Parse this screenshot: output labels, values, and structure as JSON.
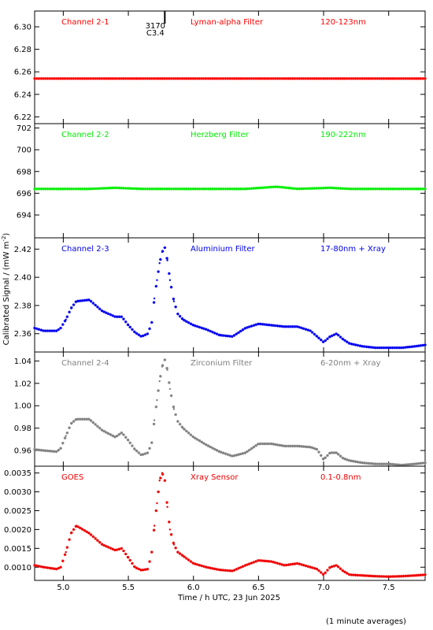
{
  "figure": {
    "xlabel": "Time / h UTC, 23 Jun 2025",
    "ylabel": "Calibrated Signal / (mW m",
    "ylabel_sup": "-2",
    "ylabel_close": ")",
    "footnote": "(1 minute averages)",
    "marker_label_top": "3170",
    "marker_label_bottom": "C3.4",
    "marker_time": 5.78
  },
  "chart_data": [
    {
      "type": "scatter",
      "channel": "Channel 2-1",
      "filter": "Lyman-alpha Filter",
      "band": "120-123nm",
      "color": "#ff0000",
      "xlim": [
        4.78,
        7.78
      ],
      "ylim": [
        6.214,
        6.314
      ],
      "yticks": [
        6.22,
        6.24,
        6.26,
        6.28,
        6.3
      ],
      "ytick_labels": [
        "6.22",
        "6.24",
        "6.26",
        "6.28",
        "6.30"
      ],
      "xticks": [
        5.0,
        5.5,
        6.0,
        6.5,
        7.0,
        7.5
      ],
      "x": [
        4.78,
        5.0,
        5.5,
        6.0,
        6.5,
        7.0,
        7.5,
        7.78
      ],
      "y": [
        6.254,
        6.254,
        6.254,
        6.254,
        6.254,
        6.254,
        6.254,
        6.254
      ]
    },
    {
      "type": "scatter",
      "channel": "Channel 2-2",
      "filter": "Herzberg Filter",
      "band": "190-222nm",
      "color": "#00ee00",
      "xlim": [
        4.78,
        7.78
      ],
      "ylim": [
        691.9,
        702.4
      ],
      "yticks": [
        694,
        696,
        698,
        700,
        702
      ],
      "ytick_labels": [
        "694",
        "696",
        "698",
        "700",
        "702"
      ],
      "xticks": [
        5.0,
        5.5,
        6.0,
        6.5,
        7.0,
        7.5
      ],
      "x": [
        4.78,
        5.0,
        5.2,
        5.4,
        5.6,
        5.8,
        6.0,
        6.2,
        6.4,
        6.64,
        6.8,
        7.05,
        7.2,
        7.4,
        7.6,
        7.78
      ],
      "y": [
        696.4,
        696.4,
        696.4,
        696.5,
        696.4,
        696.4,
        696.4,
        696.4,
        696.4,
        696.6,
        696.4,
        696.5,
        696.4,
        696.4,
        696.4,
        696.4
      ]
    },
    {
      "type": "scatter",
      "channel": "Channel 2-3",
      "filter": "Aluminium Filter",
      "band": "17-80nm + Xray",
      "color": "#0000ee",
      "xlim": [
        4.78,
        7.78
      ],
      "ylim": [
        2.347,
        2.428
      ],
      "yticks": [
        2.36,
        2.38,
        2.4,
        2.42
      ],
      "ytick_labels": [
        "2.36",
        "2.38",
        "2.40",
        "2.42"
      ],
      "xticks": [
        5.0,
        5.5,
        6.0,
        6.5,
        7.0,
        7.5
      ],
      "x": [
        4.78,
        4.85,
        4.95,
        4.98,
        5.02,
        5.06,
        5.1,
        5.2,
        5.3,
        5.4,
        5.45,
        5.5,
        5.55,
        5.6,
        5.65,
        5.68,
        5.7,
        5.72,
        5.74,
        5.76,
        5.78,
        5.8,
        5.82,
        5.85,
        5.88,
        5.92,
        6.0,
        6.1,
        6.2,
        6.3,
        6.4,
        6.5,
        6.6,
        6.7,
        6.8,
        6.9,
        6.95,
        7.0,
        7.05,
        7.1,
        7.15,
        7.2,
        7.3,
        7.4,
        7.5,
        7.6,
        7.7,
        7.78
      ],
      "y": [
        2.364,
        2.362,
        2.362,
        2.364,
        2.37,
        2.378,
        2.383,
        2.384,
        2.376,
        2.372,
        2.372,
        2.366,
        2.361,
        2.358,
        2.36,
        2.368,
        2.385,
        2.398,
        2.41,
        2.418,
        2.421,
        2.412,
        2.398,
        2.383,
        2.374,
        2.37,
        2.366,
        2.363,
        2.359,
        2.358,
        2.364,
        2.367,
        2.366,
        2.365,
        2.365,
        2.362,
        2.358,
        2.354,
        2.358,
        2.36,
        2.356,
        2.353,
        2.351,
        2.35,
        2.35,
        2.35,
        2.351,
        2.352
      ]
    },
    {
      "type": "scatter",
      "channel": "Channel 2-4",
      "filter": "Zirconium Filter",
      "band": "6-20nm + Xray",
      "color": "#808080",
      "xlim": [
        4.78,
        7.78
      ],
      "ylim": [
        0.946,
        1.048
      ],
      "yticks": [
        0.96,
        0.98,
        1.0,
        1.02,
        1.04
      ],
      "ytick_labels": [
        "0.96",
        "0.98",
        "1.00",
        "1.02",
        "1.04"
      ],
      "xticks": [
        5.0,
        5.5,
        6.0,
        6.5,
        7.0,
        7.5
      ],
      "x": [
        4.78,
        4.85,
        4.95,
        4.98,
        5.02,
        5.06,
        5.1,
        5.2,
        5.3,
        5.4,
        5.45,
        5.5,
        5.55,
        5.6,
        5.65,
        5.68,
        5.7,
        5.72,
        5.74,
        5.76,
        5.78,
        5.8,
        5.82,
        5.85,
        5.88,
        5.92,
        6.0,
        6.1,
        6.2,
        6.3,
        6.4,
        6.5,
        6.6,
        6.7,
        6.8,
        6.9,
        6.95,
        7.0,
        7.05,
        7.1,
        7.15,
        7.2,
        7.3,
        7.4,
        7.5,
        7.6,
        7.7,
        7.78
      ],
      "y": [
        0.961,
        0.96,
        0.959,
        0.962,
        0.973,
        0.984,
        0.988,
        0.988,
        0.978,
        0.972,
        0.976,
        0.969,
        0.961,
        0.956,
        0.958,
        0.967,
        0.987,
        1.005,
        1.022,
        1.035,
        1.041,
        1.032,
        1.015,
        0.997,
        0.986,
        0.98,
        0.972,
        0.965,
        0.959,
        0.955,
        0.958,
        0.966,
        0.966,
        0.964,
        0.964,
        0.963,
        0.961,
        0.952,
        0.958,
        0.958,
        0.953,
        0.951,
        0.949,
        0.948,
        0.948,
        0.947,
        0.948,
        0.949
      ]
    },
    {
      "type": "scatter",
      "channel": "GOES",
      "filter": "Xray Sensor",
      "band": "0.1-0.8nm",
      "color": "#ee0000",
      "xlim": [
        4.78,
        7.78
      ],
      "ylim": [
        0.00065,
        0.00368
      ],
      "yticks": [
        0.001,
        0.0015,
        0.002,
        0.0025,
        0.003,
        0.0035
      ],
      "ytick_labels": [
        "0.0010",
        "0.0015",
        "0.0020",
        "0.0025",
        "0.0030",
        "0.0035"
      ],
      "xticks": [
        5.0,
        5.5,
        6.0,
        6.5,
        7.0,
        7.5
      ],
      "x": [
        4.78,
        4.85,
        4.95,
        4.98,
        5.02,
        5.06,
        5.1,
        5.2,
        5.3,
        5.4,
        5.45,
        5.5,
        5.55,
        5.6,
        5.65,
        5.68,
        5.7,
        5.72,
        5.74,
        5.76,
        5.78,
        5.8,
        5.82,
        5.85,
        5.88,
        5.92,
        6.0,
        6.1,
        6.2,
        6.3,
        6.4,
        6.5,
        6.6,
        6.7,
        6.8,
        6.9,
        6.95,
        7.0,
        7.05,
        7.1,
        7.15,
        7.2,
        7.3,
        7.4,
        7.5,
        7.6,
        7.7,
        7.78
      ],
      "y": [
        0.00105,
        0.001,
        0.00095,
        0.001,
        0.0014,
        0.0019,
        0.0021,
        0.0019,
        0.0016,
        0.00145,
        0.0015,
        0.00125,
        0.001,
        0.00092,
        0.00095,
        0.0014,
        0.0021,
        0.0027,
        0.0033,
        0.0035,
        0.0033,
        0.0026,
        0.002,
        0.0016,
        0.0014,
        0.0013,
        0.0011,
        0.001,
        0.00093,
        0.0009,
        0.00105,
        0.00118,
        0.00115,
        0.00105,
        0.0011,
        0.001,
        0.00095,
        0.0008,
        0.001,
        0.00105,
        0.0009,
        0.0008,
        0.00078,
        0.00076,
        0.00075,
        0.00076,
        0.00078,
        0.0008
      ]
    }
  ]
}
